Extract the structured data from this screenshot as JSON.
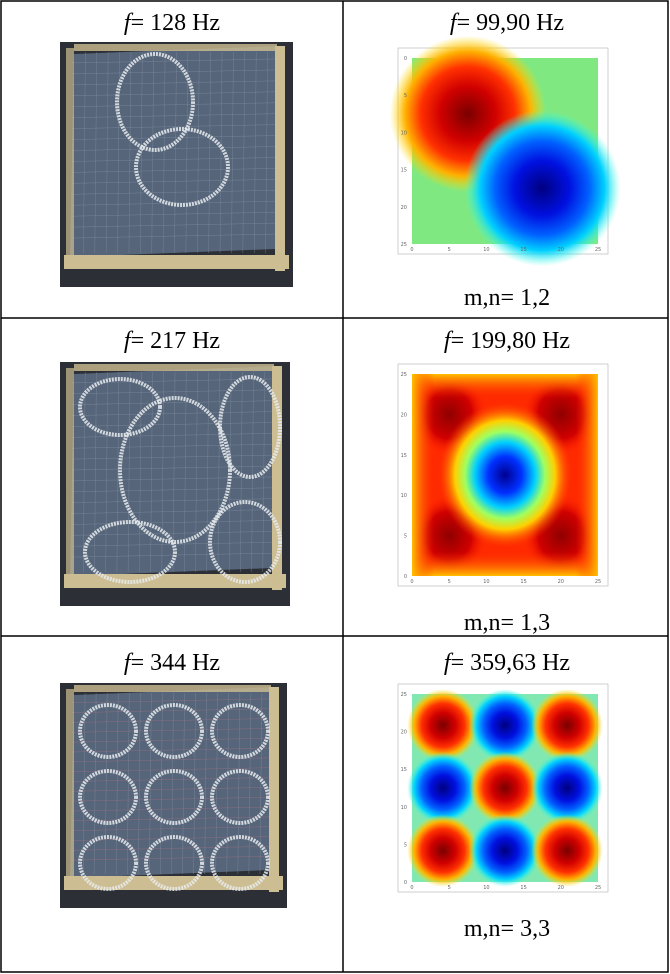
{
  "table": {
    "rows": [
      {
        "experiment": {
          "symbol": "f",
          "text": "= 128 Hz"
        },
        "simulation": {
          "symbol": "f",
          "text": "= 99,90 Hz",
          "mode": "m,n= 1,2",
          "xticks": [
            0,
            5,
            10,
            15,
            20,
            25
          ],
          "yticks": [
            0,
            5,
            10,
            15,
            20,
            25
          ],
          "y_reversed": true
        }
      },
      {
        "experiment": {
          "symbol": "f",
          "text": "= 217 Hz"
        },
        "simulation": {
          "symbol": "f",
          "text": "= 199,80 Hz",
          "mode": "m,n= 1,3",
          "xticks": [
            0,
            5,
            10,
            15,
            20,
            25
          ],
          "yticks": [
            0,
            5,
            10,
            15,
            20,
            25
          ],
          "y_reversed": false
        }
      },
      {
        "experiment": {
          "symbol": "f",
          "text": "= 344 Hz"
        },
        "simulation": {
          "symbol": "f",
          "text": "= 359,63 Hz",
          "mode": "m,n= 3,3",
          "xticks": [
            0,
            5,
            10,
            15,
            20,
            25
          ],
          "yticks": [
            0,
            5,
            10,
            15,
            20,
            25
          ],
          "y_reversed": false
        }
      }
    ]
  }
}
